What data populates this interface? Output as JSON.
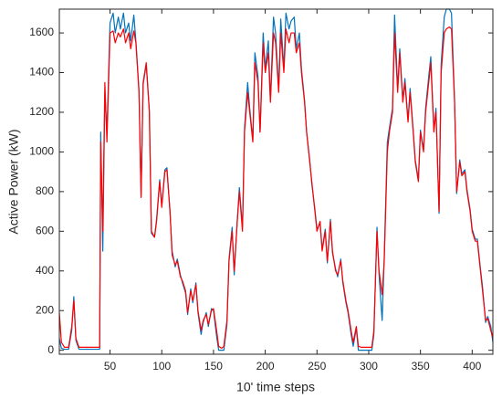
{
  "chart_data": {
    "type": "line",
    "xlabel": "10' time steps",
    "ylabel": "Active Power (kW)",
    "x": [
      1,
      3,
      6,
      10,
      13,
      15,
      17,
      20,
      25,
      30,
      35,
      40,
      41,
      43,
      45,
      47,
      50,
      53,
      55,
      58,
      60,
      63,
      65,
      68,
      70,
      73,
      75,
      78,
      80,
      82,
      85,
      88,
      90,
      93,
      95,
      98,
      100,
      103,
      105,
      108,
      110,
      113,
      115,
      118,
      120,
      123,
      125,
      128,
      130,
      133,
      135,
      138,
      140,
      143,
      145,
      148,
      150,
      153,
      155,
      158,
      160,
      163,
      165,
      168,
      170,
      173,
      175,
      178,
      180,
      183,
      185,
      188,
      190,
      193,
      195,
      198,
      200,
      203,
      205,
      208,
      210,
      213,
      215,
      218,
      220,
      223,
      225,
      228,
      230,
      233,
      235,
      238,
      240,
      243,
      245,
      248,
      250,
      253,
      255,
      258,
      260,
      263,
      265,
      268,
      270,
      273,
      275,
      278,
      280,
      283,
      285,
      288,
      290,
      293,
      295,
      298,
      300,
      303,
      305,
      308,
      310,
      313,
      315,
      318,
      320,
      323,
      325,
      328,
      330,
      333,
      335,
      338,
      340,
      343,
      345,
      348,
      350,
      353,
      355,
      358,
      360,
      363,
      365,
      368,
      370,
      373,
      375,
      378,
      380,
      383,
      385,
      388,
      390,
      393,
      395,
      398,
      400,
      403,
      405,
      408,
      410,
      413,
      415,
      418,
      420
    ],
    "series": [
      {
        "color": "#0072bd",
        "values": [
          60,
          10,
          5,
          5,
          100,
          270,
          50,
          5,
          5,
          5,
          5,
          5,
          1100,
          500,
          1300,
          1100,
          1650,
          1700,
          1600,
          1680,
          1620,
          1700,
          1600,
          1650,
          1560,
          1690,
          1560,
          1310,
          780,
          1340,
          1440,
          1210,
          590,
          570,
          660,
          860,
          730,
          910,
          920,
          690,
          500,
          420,
          460,
          380,
          340,
          290,
          180,
          310,
          240,
          340,
          190,
          80,
          140,
          190,
          120,
          210,
          200,
          70,
          0,
          0,
          0,
          130,
          460,
          620,
          380,
          660,
          820,
          620,
          1120,
          1350,
          1220,
          1060,
          1500,
          1380,
          1100,
          1600,
          1420,
          1560,
          1260,
          1680,
          1600,
          1320,
          1670,
          1420,
          1700,
          1620,
          1660,
          1680,
          1520,
          1600,
          1420,
          1260,
          1100,
          960,
          840,
          710,
          610,
          640,
          510,
          610,
          440,
          660,
          490,
          410,
          370,
          460,
          340,
          240,
          190,
          80,
          20,
          110,
          0,
          0,
          0,
          0,
          0,
          0,
          80,
          620,
          380,
          150,
          470,
          1050,
          1120,
          1220,
          1690,
          1320,
          1520,
          1260,
          1370,
          1160,
          1320,
          1110,
          960,
          860,
          1110,
          1010,
          1220,
          1380,
          1480,
          1110,
          1220,
          690,
          1440,
          1680,
          1720,
          1720,
          1700,
          1260,
          790,
          960,
          890,
          910,
          810,
          710,
          610,
          560,
          560,
          410,
          320,
          140,
          170,
          120,
          40
        ]
      },
      {
        "color": "#ff0000",
        "values": [
          190,
          40,
          15,
          15,
          120,
          250,
          60,
          15,
          15,
          15,
          15,
          15,
          1050,
          600,
          1350,
          1050,
          1600,
          1610,
          1550,
          1600,
          1580,
          1620,
          1550,
          1600,
          1520,
          1610,
          1550,
          1300,
          770,
          1350,
          1450,
          1200,
          600,
          570,
          650,
          850,
          720,
          900,
          910,
          700,
          480,
          430,
          450,
          370,
          350,
          300,
          190,
          300,
          250,
          330,
          200,
          100,
          150,
          180,
          130,
          200,
          210,
          100,
          20,
          10,
          20,
          150,
          450,
          600,
          400,
          650,
          800,
          600,
          1100,
          1300,
          1200,
          1050,
          1450,
          1350,
          1100,
          1550,
          1400,
          1500,
          1250,
          1600,
          1550,
          1300,
          1600,
          1400,
          1620,
          1550,
          1600,
          1600,
          1500,
          1550,
          1400,
          1250,
          1100,
          950,
          850,
          700,
          600,
          650,
          500,
          600,
          450,
          650,
          500,
          400,
          380,
          450,
          350,
          250,
          200,
          100,
          40,
          120,
          20,
          15,
          15,
          15,
          15,
          15,
          100,
          600,
          400,
          280,
          450,
          1000,
          1100,
          1200,
          1600,
          1300,
          1500,
          1250,
          1350,
          1150,
          1300,
          1100,
          950,
          850,
          1100,
          1000,
          1200,
          1350,
          1450,
          1100,
          1200,
          700,
          1400,
          1600,
          1620,
          1630,
          1620,
          1250,
          800,
          950,
          880,
          900,
          800,
          700,
          600,
          550,
          550,
          400,
          300,
          150,
          160,
          100,
          60
        ]
      }
    ],
    "xlim": [
      1,
      420
    ],
    "xticks": [
      50,
      100,
      150,
      200,
      250,
      300,
      350,
      400
    ],
    "ylim": [
      -20,
      1720
    ],
    "yticks": [
      0,
      200,
      400,
      600,
      800,
      1000,
      1200,
      1400,
      1600
    ],
    "grid": false
  }
}
